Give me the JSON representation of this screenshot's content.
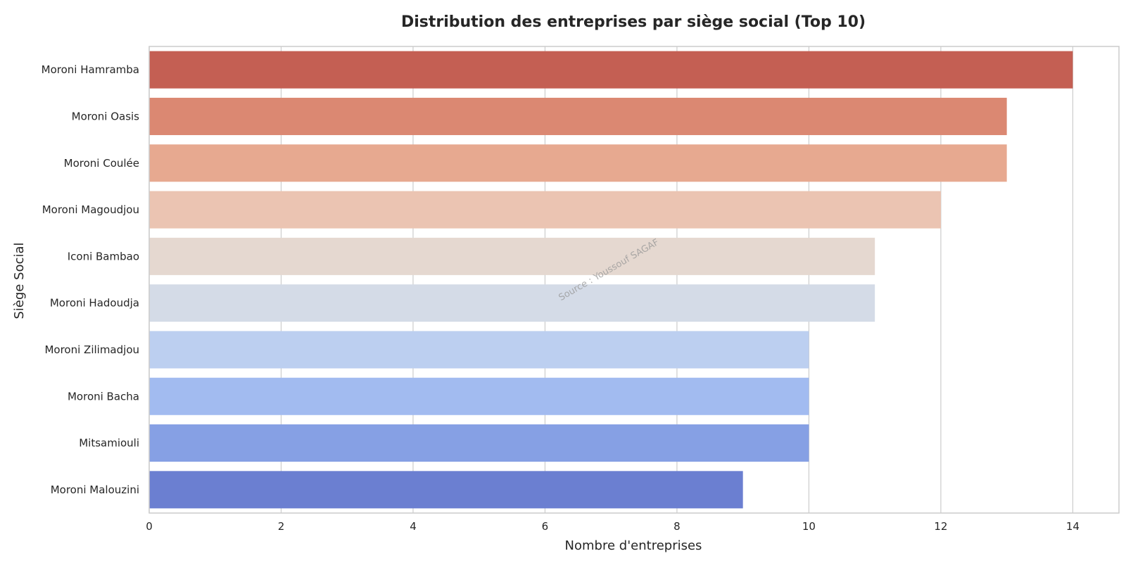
{
  "chart_data": {
    "type": "bar",
    "orientation": "horizontal",
    "title": "Distribution des entreprises par siège social (Top 10)",
    "xlabel": "Nombre d'entreprises",
    "ylabel": "Siège Social",
    "categories": [
      "Moroni Hamramba",
      "Moroni Oasis",
      "Moroni Coulée",
      "Moroni Magoudjou",
      "Iconi Bambao",
      "Moroni Hadoudja",
      "Moroni Zilimadjou",
      "Moroni Bacha",
      "Mitsamiouli",
      "Moroni Malouzini"
    ],
    "values": [
      14,
      13,
      13,
      12,
      11,
      11,
      10,
      10,
      10,
      9
    ],
    "colors": [
      "#c45f53",
      "#db8872",
      "#e7a990",
      "#ebc4b2",
      "#e5d8d0",
      "#d4dbe7",
      "#bccff0",
      "#a2bbf0",
      "#86a0e4",
      "#6b7fd1"
    ],
    "xlim": [
      0,
      14.7
    ],
    "xticks": [
      0,
      2,
      4,
      6,
      8,
      10,
      12,
      14
    ],
    "grid": true,
    "watermark": "Source : Youssouf SAGAF"
  }
}
